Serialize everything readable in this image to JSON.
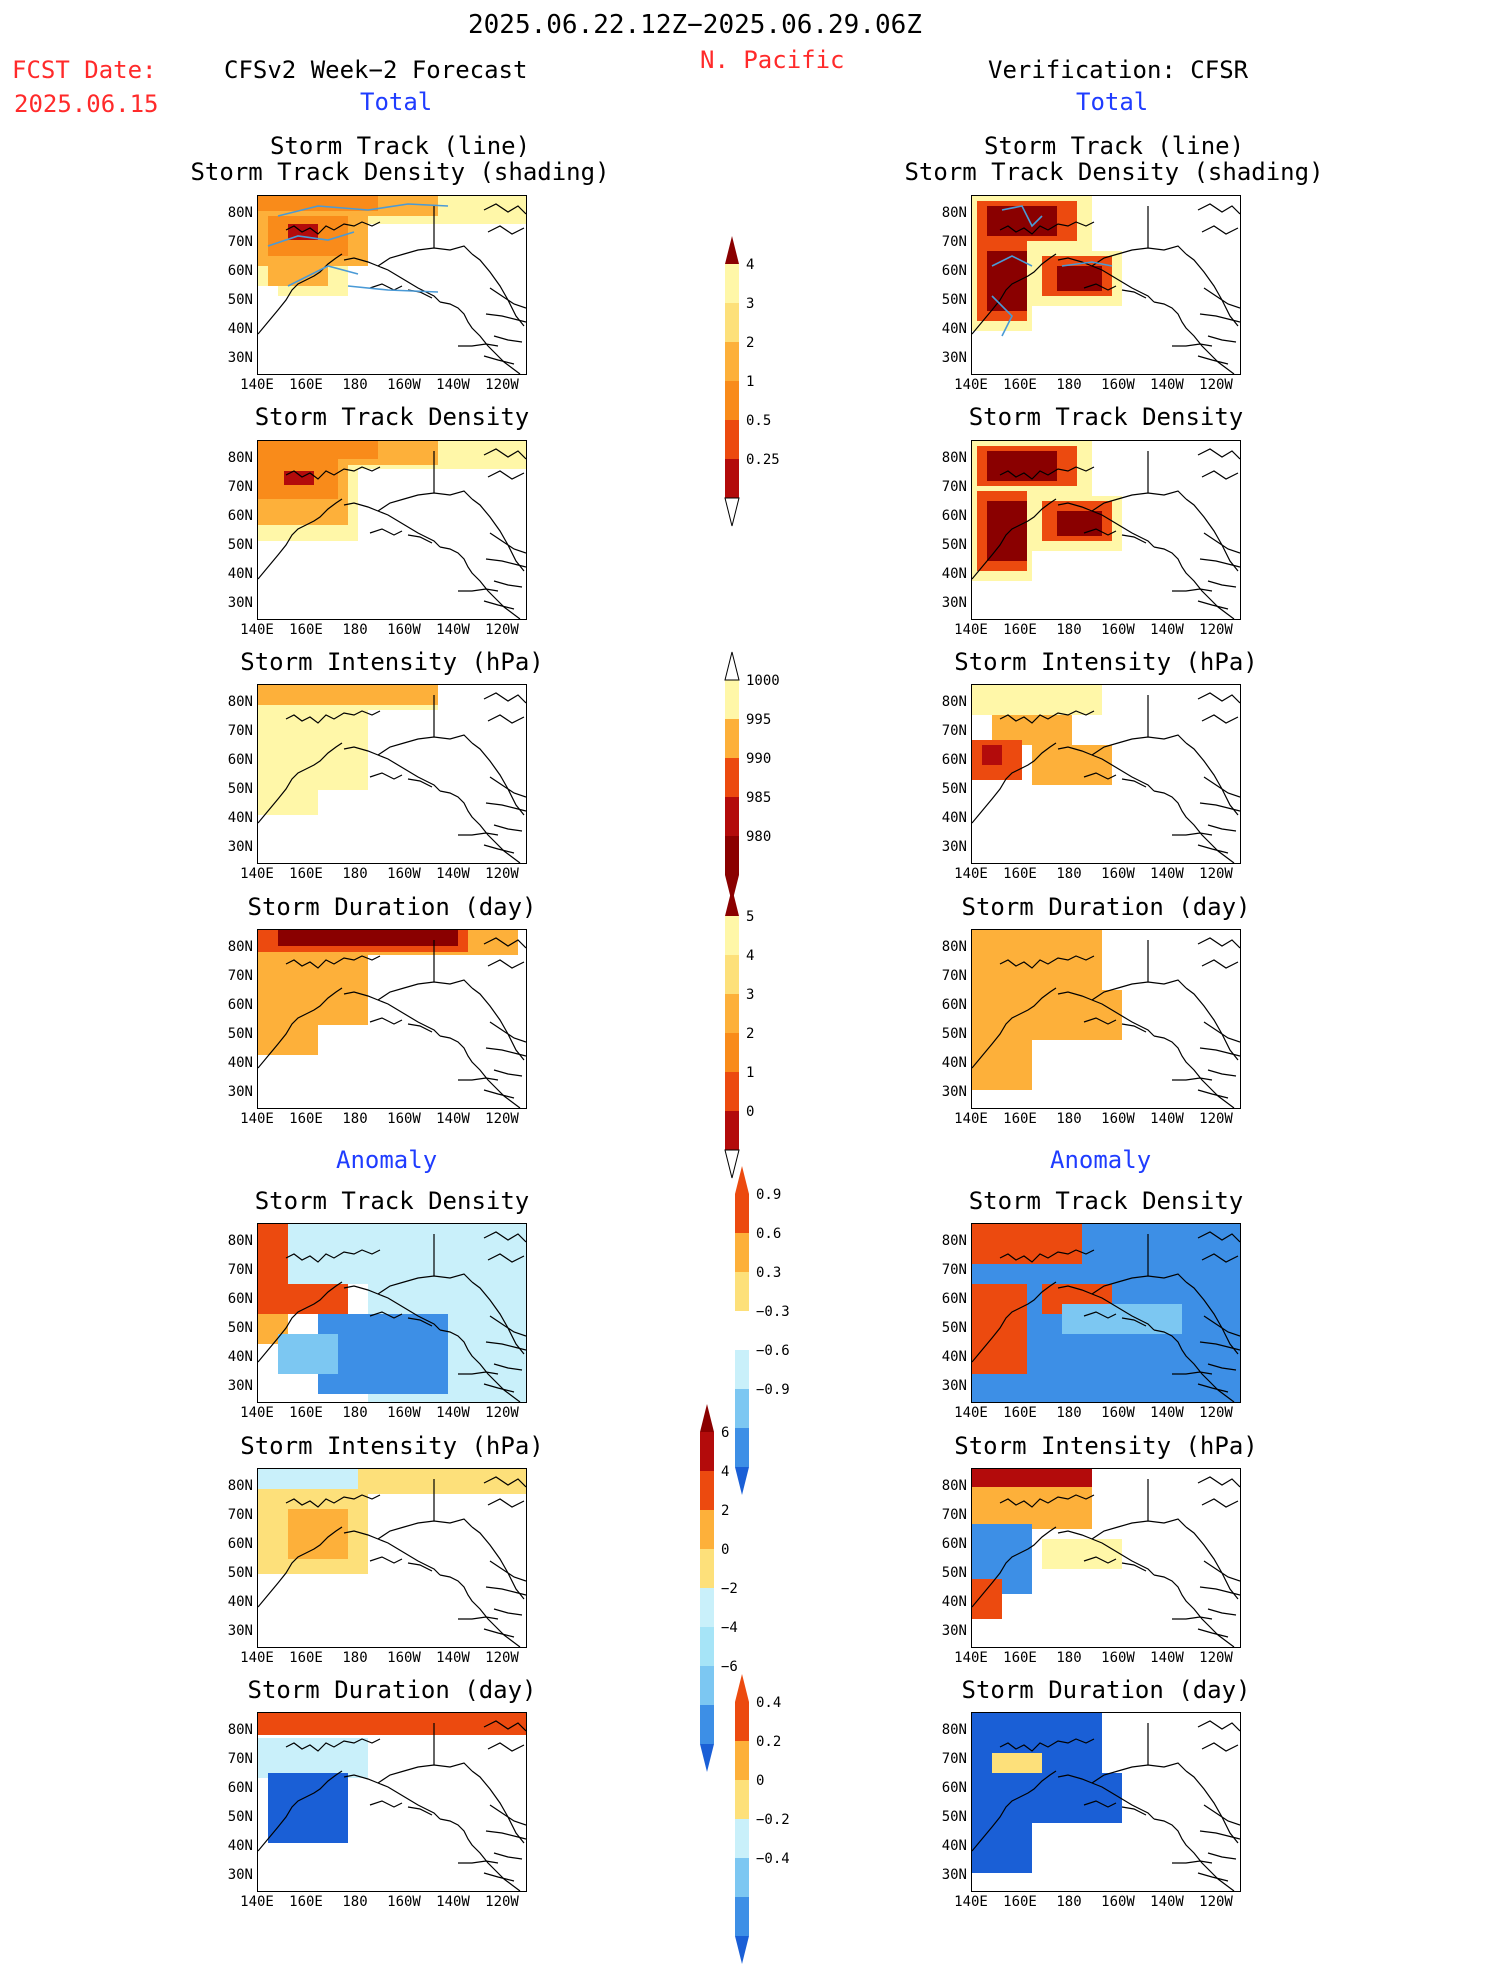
{
  "header": {
    "date_range": "2025.06.22.12Z−2025.06.29.06Z",
    "region": "N. Pacific",
    "fcst_label": "FCST Date:",
    "fcst_date": "2025.06.15",
    "left_title": "CFSv2 Week−2 Forecast",
    "right_title": "Verification: CFSR",
    "total_label": "Total",
    "anomaly_label": "Anomaly"
  },
  "panel_titles": {
    "track_line": "Storm Track (line)",
    "track_shading": "Storm Track Density (shading)",
    "density": "Storm Track Density",
    "intensity": "Storm Intensity (hPa)",
    "duration": "Storm Duration (day)"
  },
  "axes": {
    "lat_labels": [
      "80N",
      "70N",
      "60N",
      "50N",
      "40N",
      "30N"
    ],
    "lon_labels": [
      "140E",
      "160E",
      "180",
      "160W",
      "140W",
      "120W"
    ]
  },
  "colorbars": {
    "density": [
      "4",
      "3",
      "2",
      "1",
      "0.5",
      "0.25"
    ],
    "intensity": [
      "1000",
      "995",
      "990",
      "985",
      "980"
    ],
    "duration": [
      "5",
      "4",
      "3",
      "2",
      "1",
      "0"
    ],
    "density_anom": [
      "0.9",
      "0.6",
      "0.3",
      "−0.3",
      "−0.6",
      "−0.9"
    ],
    "intensity_anom": [
      "6",
      "4",
      "2",
      "0",
      "−2",
      "−4",
      "−6"
    ],
    "duration_anom": [
      "0.4",
      "0.2",
      "0",
      "−0.2",
      "−0.4"
    ]
  },
  "colors": {
    "warm": [
      "#fff7a8",
      "#fde07a",
      "#fdb03a",
      "#f98b1a",
      "#ec4a0f",
      "#b30b0b",
      "#8a0000"
    ],
    "cool": [
      "#c9f0fa",
      "#a6e4f7",
      "#7cc7f2",
      "#3d8fe6",
      "#1a5fd6"
    ],
    "track_line": "#4a9ad6"
  }
}
